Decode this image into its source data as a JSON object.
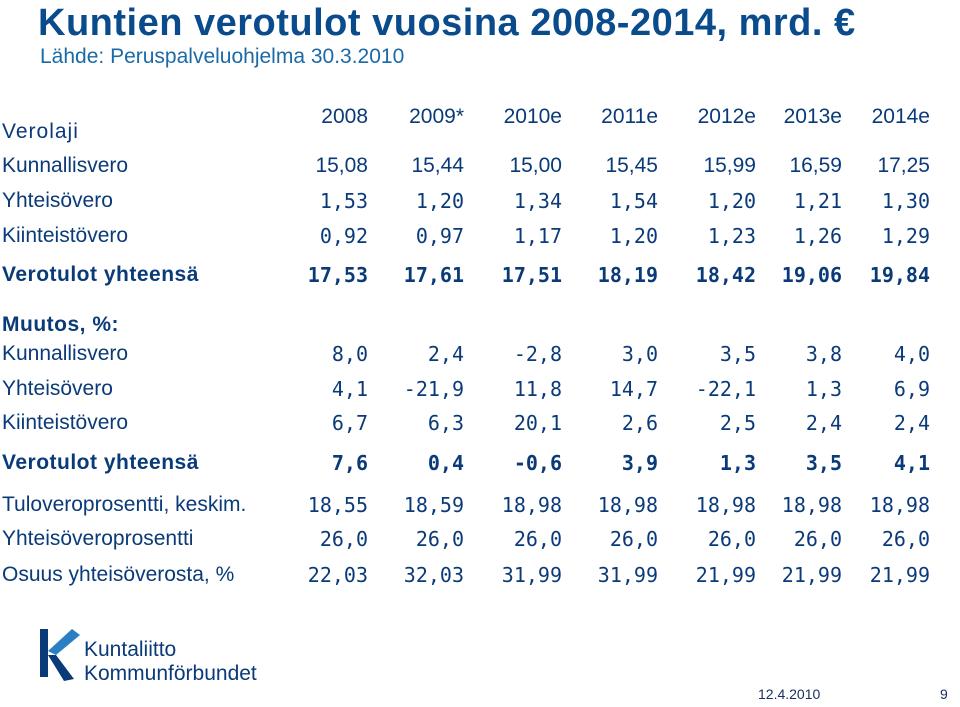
{
  "title": "Kuntien verotulot vuosina 2008-2014, mrd. €",
  "subtitle": "Lähde: Peruspalveluohjelma 30.3.2010",
  "header_label": "Verolaji",
  "years": [
    "2008",
    "2009*",
    "2010e",
    "2011e",
    "2012e",
    "2013e",
    "2014e"
  ],
  "section1": [
    {
      "label": "Kunnallisvero",
      "values": [
        "15,08",
        "15,44",
        "15,00",
        "15,45",
        "15,99",
        "16,59",
        "17,25"
      ]
    },
    {
      "label": "Yhteisövero",
      "values": [
        "1,53",
        "1,20",
        "1,34",
        "1,54",
        "1,20",
        "1,21",
        "1,30"
      ]
    },
    {
      "label": "Kiinteistövero",
      "values": [
        "0,92",
        "0,97",
        "1,17",
        "1,20",
        "1,23",
        "1,26",
        "1,29"
      ]
    }
  ],
  "total1": {
    "label": "Verotulot yhteensä",
    "values": [
      "17,53",
      "17,61",
      "17,51",
      "18,19",
      "18,42",
      "19,06",
      "19,84"
    ]
  },
  "change_heading": "Muutos, %:",
  "section2": [
    {
      "label": "Kunnallisvero",
      "values": [
        "8,0",
        "2,4",
        "-2,8",
        "3,0",
        "3,5",
        "3,8",
        "4,0"
      ]
    },
    {
      "label": "Yhteisövero",
      "values": [
        "4,1",
        "-21,9",
        "11,8",
        "14,7",
        "-22,1",
        "1,3",
        "6,9"
      ]
    },
    {
      "label": "Kiinteistövero",
      "values": [
        "6,7",
        "6,3",
        "20,1",
        "2,6",
        "2,5",
        "2,4",
        "2,4"
      ]
    }
  ],
  "total2": {
    "label": "Verotulot yhteensä",
    "values": [
      "7,6",
      "0,4",
      "-0,6",
      "3,9",
      "1,3",
      "3,5",
      "4,1"
    ]
  },
  "section3": [
    {
      "label": "Tuloveroprosentti, keskim.",
      "values": [
        "18,55",
        "18,59",
        "18,98",
        "18,98",
        "18,98",
        "18,98",
        "18,98"
      ]
    },
    {
      "label": "Yhteisöveroprosentti",
      "values": [
        "26,0",
        "26,0",
        "26,0",
        "26,0",
        "26,0",
        "26,0",
        "26,0"
      ]
    },
    {
      "label": "Osuus yhteisöverosta, %",
      "values": [
        "22,03",
        "32,03",
        "31,99",
        "31,99",
        "21,99",
        "21,99",
        "21,99"
      ]
    }
  ],
  "logo": {
    "line1": "Kuntaliitto",
    "line2": "Kommunförbundet"
  },
  "footer": {
    "date": "12.4.2010",
    "page": "9"
  },
  "colors": {
    "title": "#0a4b8c",
    "text": "#0a3a78",
    "accent": "#1a6aa8"
  }
}
